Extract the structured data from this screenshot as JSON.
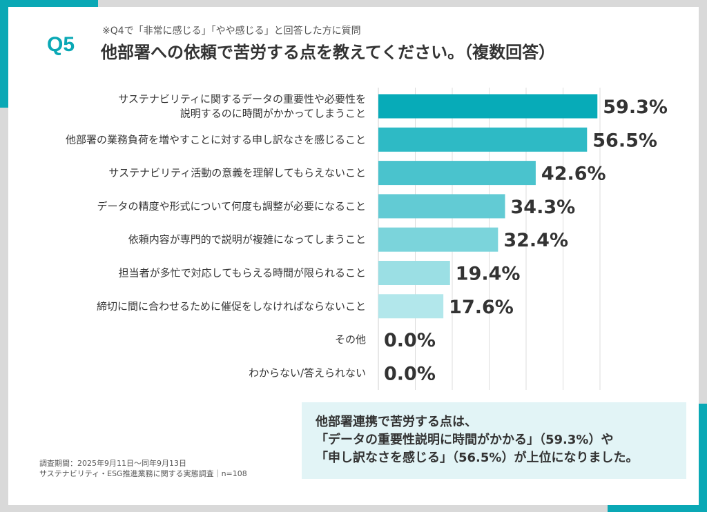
{
  "header": {
    "question_no": "Q5",
    "note": "※Q4で「非常に感じる」「やや感じる」と回答した方に質問",
    "title": "他部署への依頼で苦労する点を教えてください。（複数回答）"
  },
  "colors": {
    "accent": "#0aa8b5",
    "bars": [
      "#07abb8",
      "#2ebac5",
      "#4ac3cd",
      "#62cbd4",
      "#7bd4db",
      "#9bdfe4",
      "#b2e7eb"
    ],
    "summary_bg": "#e2f4f6"
  },
  "chart_data": {
    "type": "bar",
    "orientation": "horizontal",
    "xlim": [
      0,
      60
    ],
    "grid": true,
    "gridlines": [
      10,
      20,
      30,
      40,
      50,
      60
    ],
    "categories": [
      [
        "サステナビリティに関するデータの重要性や必要性を",
        "説明するのに時間がかかってしまうこと"
      ],
      [
        "他部署の業務負荷を増やすことに対する申し訳なさを感じること"
      ],
      [
        "サステナビリティ活動の意義を理解してもらえないこと"
      ],
      [
        "データの精度や形式について何度も調整が必要になること"
      ],
      [
        "依頼内容が専門的で説明が複雑になってしまうこと"
      ],
      [
        "担当者が多忙で対応してもらえる時間が限られること"
      ],
      [
        "締切に間に合わせるために催促をしなければならないこと"
      ],
      [
        "その他"
      ],
      [
        "わからない/答えられない"
      ]
    ],
    "values": [
      59.3,
      56.5,
      42.6,
      34.3,
      32.4,
      19.4,
      17.6,
      0.0,
      0.0
    ],
    "value_labels": [
      "59.3%",
      "56.5%",
      "42.6%",
      "34.3%",
      "32.4%",
      "19.4%",
      "17.6%",
      "0.0%",
      "0.0%"
    ]
  },
  "footer": {
    "period": "調査期間：2025年9月11日～同年9月13日",
    "survey": "サステナビリティ・ESG推進業務に関する実態調査｜n=108"
  },
  "summary": {
    "lines": [
      "他部署連携で苦労する点は、",
      "「データの重要性説明に時間がかかる」（59.3%）や",
      "「申し訳なさを感じる」（56.5%）が上位になりました。"
    ]
  }
}
